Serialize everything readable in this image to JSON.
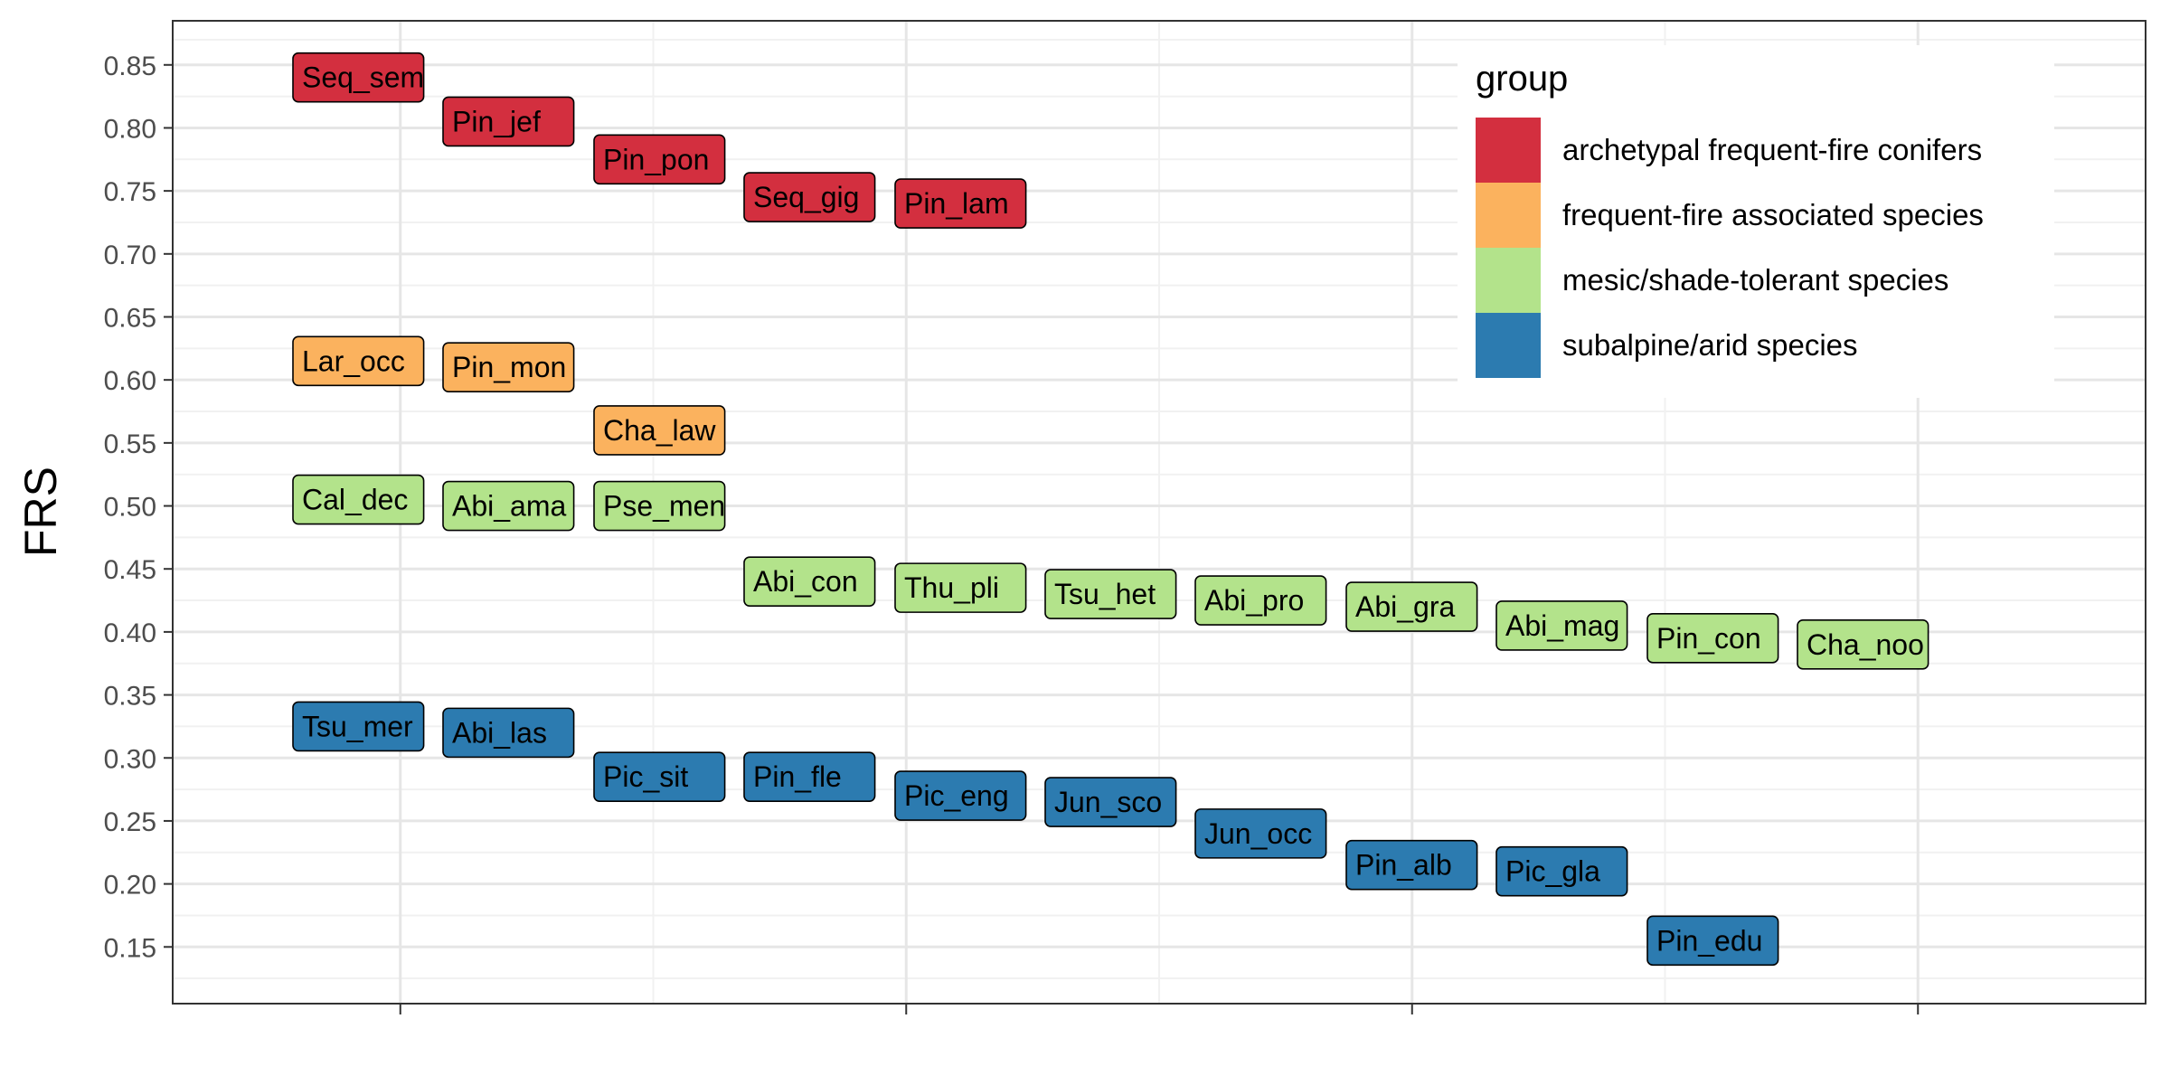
{
  "chart_data": {
    "type": "scatter",
    "ylabel": "FRS",
    "xlabel": "",
    "ylim": [
      0.105,
      0.885
    ],
    "xlim": [
      0.55,
      4.45
    ],
    "yticks": [
      "0.15",
      "0.20",
      "0.25",
      "0.30",
      "0.35",
      "0.40",
      "0.45",
      "0.50",
      "0.55",
      "0.60",
      "0.65",
      "0.70",
      "0.75",
      "0.80",
      "0.85"
    ],
    "grid": true,
    "legend": {
      "title": "group",
      "position": "top-right",
      "entries": [
        {
          "label": "archetypal frequent-fire conifers",
          "color": "#d32f3f"
        },
        {
          "label": "frequent-fire associated species",
          "color": "#fbb25e"
        },
        {
          "label": "mesic/shade-tolerant species",
          "color": "#b3e38b"
        },
        {
          "label": "subalpine/arid species",
          "color": "#2c7bb0"
        }
      ]
    },
    "points": [
      {
        "label": "Seq_sem",
        "y": 0.84,
        "group": 0
      },
      {
        "label": "Pin_jef",
        "y": 0.805,
        "group": 0
      },
      {
        "label": "Pin_pon",
        "y": 0.775,
        "group": 0
      },
      {
        "label": "Seq_gig",
        "y": 0.745,
        "group": 0
      },
      {
        "label": "Pin_lam",
        "y": 0.74,
        "group": 0
      },
      {
        "label": "Lar_occ",
        "y": 0.615,
        "group": 1
      },
      {
        "label": "Pin_mon",
        "y": 0.61,
        "group": 1
      },
      {
        "label": "Cha_law",
        "y": 0.56,
        "group": 1
      },
      {
        "label": "Cal_dec",
        "y": 0.505,
        "group": 2
      },
      {
        "label": "Abi_ama",
        "y": 0.5,
        "group": 2
      },
      {
        "label": "Pse_men",
        "y": 0.5,
        "group": 2
      },
      {
        "label": "Abi_con",
        "y": 0.44,
        "group": 2
      },
      {
        "label": "Thu_pli",
        "y": 0.435,
        "group": 2
      },
      {
        "label": "Tsu_het",
        "y": 0.43,
        "group": 2
      },
      {
        "label": "Abi_pro",
        "y": 0.425,
        "group": 2
      },
      {
        "label": "Abi_gra",
        "y": 0.42,
        "group": 2
      },
      {
        "label": "Abi_mag",
        "y": 0.405,
        "group": 2
      },
      {
        "label": "Pin_con",
        "y": 0.395,
        "group": 2
      },
      {
        "label": "Cha_noo",
        "y": 0.39,
        "group": 2
      },
      {
        "label": "Tsu_mer",
        "y": 0.325,
        "group": 3
      },
      {
        "label": "Abi_las",
        "y": 0.32,
        "group": 3
      },
      {
        "label": "Pic_sit",
        "y": 0.285,
        "group": 3
      },
      {
        "label": "Pin_fle",
        "y": 0.285,
        "group": 3
      },
      {
        "label": "Pic_eng",
        "y": 0.27,
        "group": 3
      },
      {
        "label": "Jun_sco",
        "y": 0.265,
        "group": 3
      },
      {
        "label": "Jun_occ",
        "y": 0.24,
        "group": 3
      },
      {
        "label": "Pin_alb",
        "y": 0.215,
        "group": 3
      },
      {
        "label": "Pic_gla",
        "y": 0.21,
        "group": 3
      },
      {
        "label": "Pin_edu",
        "y": 0.155,
        "group": 3
      }
    ]
  }
}
